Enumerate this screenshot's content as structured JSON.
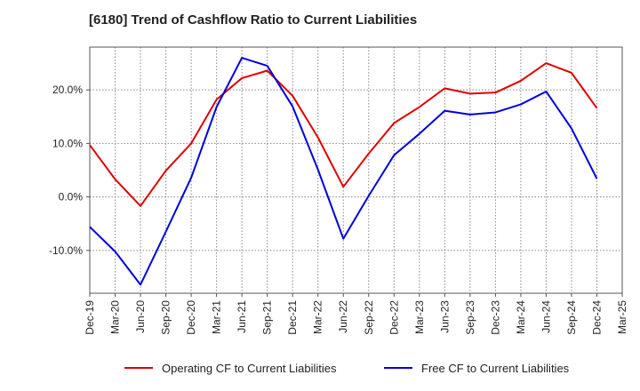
{
  "title": "[6180]  Trend of Cashflow Ratio to Current Liabilities",
  "chart_data": {
    "type": "line",
    "title": "[6180]  Trend of Cashflow Ratio to Current Liabilities",
    "xlabel": "",
    "ylabel": "",
    "x": [
      "Dec-19",
      "Mar-20",
      "Jun-20",
      "Sep-20",
      "Dec-20",
      "Mar-21",
      "Jun-21",
      "Sep-21",
      "Dec-21",
      "Mar-22",
      "Jun-22",
      "Sep-22",
      "Dec-22",
      "Mar-23",
      "Jun-23",
      "Sep-23",
      "Dec-23",
      "Mar-24",
      "Jun-24",
      "Sep-24",
      "Dec-24",
      "Mar-25"
    ],
    "ylim": [
      -18,
      28
    ],
    "yticks": [
      -10,
      0,
      10,
      20
    ],
    "ytick_labels": [
      "-10.0%",
      "0.0%",
      "10.0%",
      "20.0%"
    ],
    "grid": true,
    "legend_position": "bottom",
    "series": [
      {
        "name": "Operating CF to Current Liabilities",
        "color": "#e00000",
        "values": [
          9.7,
          3.3,
          -1.7,
          4.9,
          10.0,
          18.2,
          22.2,
          23.6,
          18.9,
          11.1,
          1.9,
          8.1,
          13.8,
          16.8,
          20.3,
          19.3,
          19.5,
          21.7,
          25.0,
          23.2,
          16.6,
          null
        ]
      },
      {
        "name": "Free CF to Current Liabilities",
        "color": "#0000dd",
        "values": [
          -5.6,
          -10.2,
          -16.4,
          -6.5,
          3.6,
          16.8,
          26.0,
          24.5,
          16.9,
          5.1,
          -7.8,
          0.2,
          7.8,
          11.8,
          16.1,
          15.4,
          15.8,
          17.3,
          19.7,
          12.8,
          3.4,
          null
        ]
      }
    ]
  }
}
